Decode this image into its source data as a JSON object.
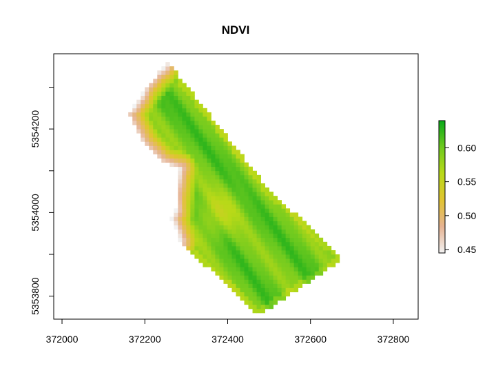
{
  "chart_data": {
    "type": "heatmap",
    "title": "NDVI",
    "xlabel": "",
    "ylabel": "",
    "xlim": [
      371980,
      372860
    ],
    "ylim": [
      5353745,
      5354380
    ],
    "x_ticks": [
      372000,
      372200,
      372400,
      372600,
      372800
    ],
    "y_ticks": [
      5353800,
      5354000,
      5354200
    ],
    "x_tick_labels": [
      "372000",
      "372200",
      "372400",
      "372600",
      "372800"
    ],
    "y_tick_labels": [
      "5353800",
      "5354000",
      "5354200"
    ],
    "colorbar": {
      "min": 0.445,
      "max": 0.64,
      "ticks": [
        0.45,
        0.5,
        0.55,
        0.6
      ],
      "tick_labels": [
        "0.45",
        "0.50",
        "0.55",
        "0.60"
      ],
      "colors": [
        "#f2f2f2",
        "#e6b392",
        "#e1c431",
        "#b8d918",
        "#6fca1f",
        "#09a91a"
      ]
    },
    "field_outline": [
      [
        372255,
        5354360
      ],
      [
        372405,
        5354175
      ],
      [
        372500,
        5354055
      ],
      [
        372680,
        5353890
      ],
      [
        372475,
        5353755
      ],
      [
        372285,
        5353930
      ],
      [
        372265,
        5353985
      ],
      [
        372275,
        5354005
      ],
      [
        372285,
        5354105
      ],
      [
        372245,
        5354120
      ],
      [
        372200,
        5354165
      ],
      [
        372160,
        5354235
      ],
      [
        372205,
        5354300
      ]
    ],
    "ndvi_pattern": {
      "base": 0.6,
      "edge_low": 0.45,
      "stripe_amplitude": 0.02
    },
    "grid": false,
    "legend_position": "right"
  }
}
